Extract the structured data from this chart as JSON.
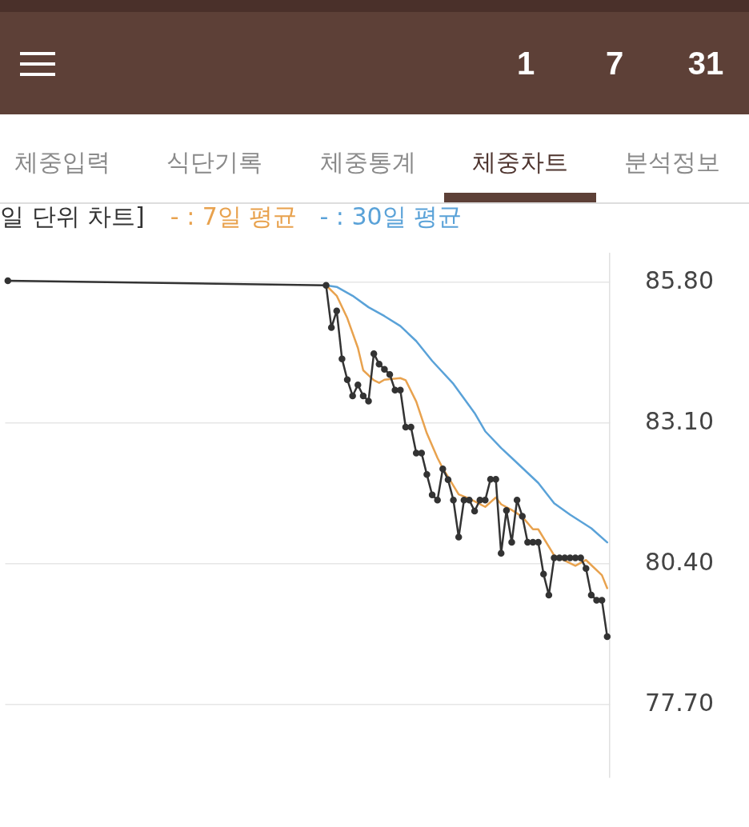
{
  "chart_data": {
    "type": "line",
    "title": "일 단위 차트]",
    "annotations": [
      "1",
      "7",
      "31",
      "체중입력",
      "식단기록",
      "체중통계",
      "체중차트",
      "분석정보"
    ],
    "categories": [
      null,
      null,
      null,
      null,
      null,
      null,
      null,
      null,
      null,
      null,
      null,
      null,
      null,
      null,
      null,
      null,
      null,
      null,
      null,
      null,
      null,
      null,
      null,
      null,
      null,
      null,
      null,
      null,
      null,
      null,
      null,
      null,
      null,
      null,
      null,
      null,
      null,
      null,
      null,
      null,
      null,
      null,
      null,
      null,
      null,
      null,
      null,
      null,
      null,
      null,
      null,
      null,
      null,
      null,
      null,
      null,
      null,
      null,
      null,
      null,
      null,
      null,
      null,
      null,
      null,
      null,
      null,
      null,
      null,
      null,
      null,
      null,
      null,
      null,
      null,
      null,
      null,
      null,
      null,
      null,
      null,
      null,
      null,
      null,
      null,
      null,
      null,
      null,
      null,
      null,
      null,
      null,
      null,
      null,
      null,
      null,
      null,
      null,
      null,
      null,
      null,
      null,
      null,
      null,
      null,
      null,
      null,
      null,
      null,
      null,
      null,
      null,
      null,
      null
    ],
    "ylim": [
      76.3,
      86.35
    ],
    "yticks": [
      {
        "value": 85.8,
        "label": "85.80"
      },
      {
        "value": 83.1,
        "label": "83.10"
      },
      {
        "value": 80.4,
        "label": "80.40"
      },
      {
        "value": 77.7,
        "label": "77.70"
      }
    ],
    "tick_labels": "y",
    "grid": "y",
    "line_style": "solid",
    "series": [
      {
        "color": "#333333",
        "marker": "circle",
        "values": [
          85.83,
          null,
          null,
          null,
          null,
          null,
          null,
          null,
          null,
          null,
          null,
          null,
          null,
          null,
          null,
          null,
          null,
          null,
          null,
          null,
          null,
          null,
          null,
          null,
          null,
          null,
          null,
          null,
          null,
          null,
          null,
          null,
          null,
          null,
          null,
          null,
          null,
          null,
          null,
          null,
          null,
          null,
          null,
          null,
          null,
          null,
          null,
          null,
          null,
          null,
          null,
          null,
          null,
          null,
          null,
          null,
          null,
          null,
          null,
          null,
          85.74,
          84.93,
          85.25,
          84.33,
          83.93,
          83.62,
          83.83,
          83.62,
          83.52,
          84.43,
          84.23,
          84.13,
          84.03,
          83.73,
          83.73,
          83.02,
          83.02,
          82.52,
          82.52,
          82.11,
          81.72,
          81.62,
          82.22,
          82.01,
          81.62,
          80.91,
          81.62,
          81.62,
          81.41,
          81.62,
          81.62,
          82.02,
          82.02,
          80.6,
          81.42,
          80.81,
          81.62,
          81.31,
          80.81,
          80.81,
          80.81,
          80.2,
          79.8,
          80.51,
          80.51,
          80.51,
          80.51,
          80.51,
          80.51,
          80.31,
          79.8,
          79.7,
          79.7,
          79.0
        ]
      },
      {
        "name": "- : 7일 평균",
        "color": "#e8a24e",
        "marker": "none",
        "values": [
          null,
          null,
          null,
          null,
          null,
          null,
          null,
          null,
          null,
          null,
          null,
          null,
          null,
          null,
          null,
          null,
          null,
          null,
          null,
          null,
          null,
          null,
          null,
          null,
          null,
          null,
          null,
          null,
          null,
          null,
          null,
          null,
          null,
          null,
          null,
          null,
          null,
          null,
          null,
          null,
          null,
          null,
          null,
          null,
          null,
          null,
          null,
          null,
          null,
          null,
          null,
          null,
          null,
          null,
          null,
          null,
          null,
          null,
          null,
          null,
          85.74,
          null,
          85.54,
          null,
          85.11,
          null,
          84.54,
          84.11,
          null,
          83.92,
          83.87,
          83.93,
          null,
          null,
          83.96,
          83.92,
          null,
          83.51,
          null,
          82.9,
          null,
          82.43,
          82.23,
          null,
          null,
          81.73,
          null,
          81.65,
          null,
          null,
          81.49,
          null,
          81.67,
          81.54,
          null,
          81.43,
          null,
          81.3,
          null,
          81.06,
          81.06,
          null,
          null,
          80.56,
          null,
          null,
          null,
          80.36,
          null,
          80.47,
          null,
          null,
          80.18,
          79.93
        ]
      },
      {
        "name": "- : 30일 평균",
        "color": "#5aa2d8",
        "marker": "none",
        "values": [
          null,
          null,
          null,
          null,
          null,
          null,
          null,
          null,
          null,
          null,
          null,
          null,
          null,
          null,
          null,
          null,
          null,
          null,
          null,
          null,
          null,
          null,
          null,
          null,
          null,
          null,
          null,
          null,
          null,
          null,
          null,
          null,
          null,
          null,
          null,
          null,
          null,
          null,
          null,
          null,
          null,
          null,
          null,
          null,
          null,
          null,
          null,
          null,
          null,
          null,
          null,
          null,
          null,
          null,
          null,
          null,
          null,
          null,
          null,
          null,
          85.74,
          null,
          85.71,
          null,
          null,
          85.54,
          null,
          null,
          85.32,
          null,
          null,
          85.15,
          null,
          null,
          84.96,
          null,
          null,
          84.67,
          null,
          null,
          84.29,
          null,
          null,
          null,
          83.85,
          null,
          null,
          null,
          83.29,
          null,
          82.94,
          null,
          null,
          82.62,
          null,
          82.43,
          null,
          null,
          null,
          null,
          81.95,
          null,
          null,
          81.56,
          null,
          null,
          81.34,
          null,
          null,
          null,
          81.08,
          null,
          null,
          80.81
        ]
      }
    ]
  }
}
